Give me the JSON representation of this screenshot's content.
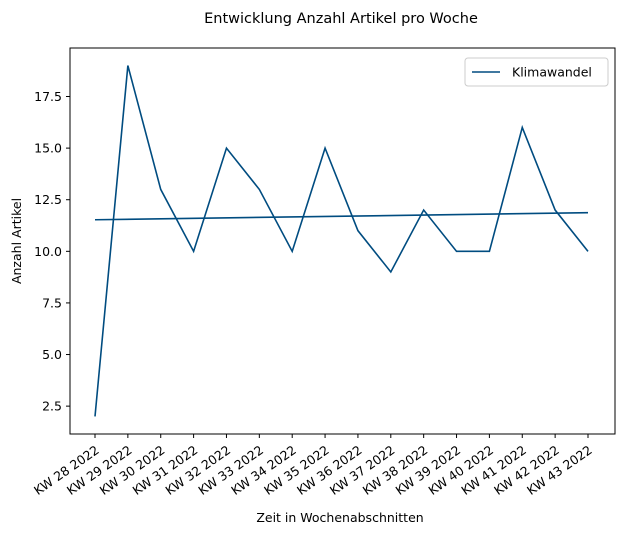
{
  "chart_data": {
    "type": "line",
    "title": "Entwicklung Anzahl Artikel pro Woche",
    "xlabel": "Zeit in Wochenabschnitten",
    "ylabel": "Anzahl Artikel",
    "categories": [
      "KW 28 2022",
      "KW 29 2022",
      "KW 30 2022",
      "KW 31 2022",
      "KW 32 2022",
      "KW 33 2022",
      "KW 34 2022",
      "KW 35 2022",
      "KW 36 2022",
      "KW 37 2022",
      "KW 38 2022",
      "KW 39 2022",
      "KW 40 2022",
      "KW 41 2022",
      "KW 42 2022",
      "KW 43 2022"
    ],
    "series": [
      {
        "name": "Klimawandel",
        "values": [
          2,
          19,
          13,
          10,
          15,
          13,
          10,
          15,
          11,
          9,
          12,
          10,
          10,
          16,
          12,
          10
        ],
        "color": "#004c80"
      }
    ],
    "trend": {
      "values": [
        11.53,
        11.87
      ],
      "color": "#004c80"
    },
    "yticks": [
      "2.5",
      "5.0",
      "7.5",
      "10.0",
      "12.5",
      "15.0",
      "17.5"
    ],
    "ylim": [
      1.15,
      19.85
    ],
    "grid": false,
    "legend_position": "top-right"
  }
}
